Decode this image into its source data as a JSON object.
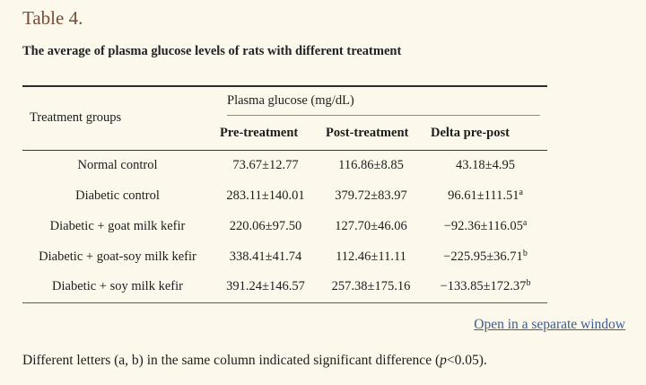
{
  "page": {
    "background_color": "#fcf9ec",
    "accent_title_color": "#7b4a35",
    "link_color": "#3b5c94"
  },
  "table_label": "Table 4.",
  "caption": "The average of plasma glucose levels of rats with different treatment",
  "table": {
    "row_header": "Treatment groups",
    "col_group_header": "Plasma glucose (mg/dL)",
    "sub_headers": [
      "Pre-treatment",
      "Post-treatment",
      "Delta pre-post"
    ],
    "rows": [
      {
        "group": "Normal control",
        "pre": "73.67±12.77",
        "post": "116.86±8.85",
        "delta": "43.18±4.95",
        "delta_sup": ""
      },
      {
        "group": "Diabetic control",
        "pre": "283.11±140.01",
        "post": "379.72±83.97",
        "delta": "96.61±111.51",
        "delta_sup": "a"
      },
      {
        "group": "Diabetic + goat milk kefir",
        "pre": "220.06±97.50",
        "post": "127.70±46.06",
        "delta": "−92.36±116.05",
        "delta_sup": "a"
      },
      {
        "group": "Diabetic + goat-soy milk kefir",
        "pre": "338.41±41.74",
        "post": "112.46±11.11",
        "delta": "−225.95±36.71",
        "delta_sup": "b"
      },
      {
        "group": "Diabetic + soy milk kefir",
        "pre": "391.24±146.57",
        "post": "257.38±175.16",
        "delta": "−133.85±172.37",
        "delta_sup": "b"
      }
    ]
  },
  "link": {
    "label": "Open in a separate window"
  },
  "footnote": {
    "before_p": "Different letters (a, b) in the same column indicated significant difference (",
    "p": "p",
    "after_p": "<0.05)."
  }
}
